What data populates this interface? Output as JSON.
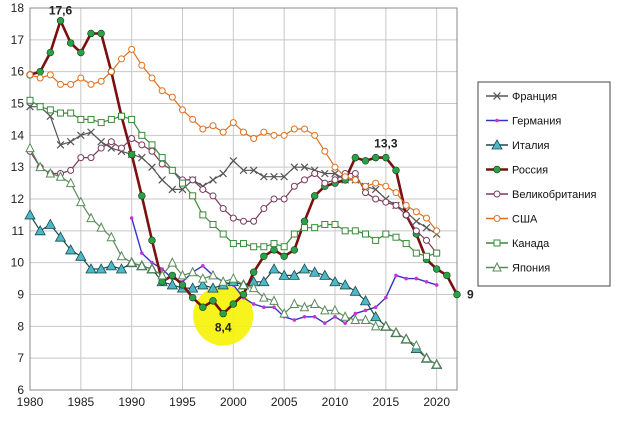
{
  "chart_data": {
    "type": "line",
    "xlim": [
      1980,
      2022
    ],
    "ylim": [
      6,
      18
    ],
    "x_ticks": [
      1980,
      1985,
      1990,
      1995,
      2000,
      2005,
      2010,
      2015,
      2020
    ],
    "y_ticks": [
      6,
      7,
      8,
      9,
      10,
      11,
      12,
      13,
      14,
      15,
      16,
      17,
      18
    ],
    "grid": true,
    "legend_position": "right",
    "annotations": [
      {
        "text": "17,6",
        "x": 1983,
        "y": 17.6
      },
      {
        "text": "13,3",
        "x": 2015,
        "y": 13.3
      },
      {
        "text": "8,4",
        "x": 1999,
        "y": 8.4,
        "highlight": "#f5f20a"
      },
      {
        "text": "9",
        "x": 2022,
        "y": 9.0
      }
    ],
    "series": [
      {
        "name": "Франция",
        "color": "#555555",
        "marker": "x",
        "x": [
          1980,
          1981,
          1982,
          1983,
          1984,
          1985,
          1986,
          1987,
          1988,
          1989,
          1990,
          1991,
          1992,
          1993,
          1994,
          1995,
          1996,
          1997,
          1998,
          1999,
          2000,
          2001,
          2002,
          2003,
          2004,
          2005,
          2006,
          2007,
          2008,
          2009,
          2010,
          2011,
          2012,
          2013,
          2014,
          2015,
          2016,
          2017,
          2018,
          2019,
          2020
        ],
        "y": [
          14.9,
          14.9,
          14.6,
          13.7,
          13.8,
          14.0,
          14.1,
          13.8,
          13.6,
          13.5,
          13.4,
          13.3,
          13.0,
          12.6,
          12.3,
          12.3,
          12.6,
          12.4,
          12.6,
          12.8,
          13.2,
          12.9,
          12.9,
          12.7,
          12.7,
          12.7,
          13.0,
          13.0,
          12.9,
          12.8,
          12.8,
          12.6,
          12.6,
          12.4,
          12.3,
          12.0,
          11.8,
          11.6,
          11.3,
          11.1,
          10.9
        ]
      },
      {
        "name": "Германия",
        "color": "#3333cc",
        "marker": "dot",
        "x": [
          1990,
          1991,
          1992,
          1993,
          1994,
          1995,
          1996,
          1997,
          1998,
          1999,
          2000,
          2001,
          2002,
          2003,
          2004,
          2005,
          2006,
          2007,
          2008,
          2009,
          2010,
          2011,
          2012,
          2013,
          2014,
          2015,
          2016,
          2017,
          2018,
          2019,
          2020
        ],
        "y": [
          11.4,
          10.3,
          10.0,
          9.8,
          9.5,
          9.4,
          9.7,
          9.9,
          9.6,
          9.4,
          9.3,
          8.9,
          8.7,
          8.6,
          8.6,
          8.3,
          8.2,
          8.3,
          8.3,
          8.1,
          8.3,
          8.1,
          8.4,
          8.5,
          8.6,
          8.9,
          9.6,
          9.5,
          9.5,
          9.4,
          9.3
        ]
      },
      {
        "name": "Италия",
        "color": "#1a4a4a",
        "marker": "triangle-filled",
        "x": [
          1980,
          1981,
          1982,
          1983,
          1984,
          1985,
          1986,
          1987,
          1988,
          1989,
          1990,
          1991,
          1992,
          1993,
          1994,
          1995,
          1996,
          1997,
          1998,
          1999,
          2000,
          2001,
          2002,
          2003,
          2004,
          2005,
          2006,
          2007,
          2008,
          2009,
          2010,
          2011,
          2012,
          2013,
          2014,
          2015,
          2016,
          2017,
          2018,
          2019,
          2020
        ],
        "y": [
          11.5,
          11.0,
          11.2,
          10.8,
          10.4,
          10.2,
          9.8,
          9.8,
          9.9,
          9.8,
          10.0,
          9.9,
          9.8,
          9.4,
          9.3,
          9.2,
          9.2,
          9.3,
          9.2,
          9.3,
          9.4,
          9.3,
          9.4,
          9.4,
          9.8,
          9.6,
          9.6,
          9.8,
          9.7,
          9.6,
          9.4,
          9.3,
          9.1,
          8.8,
          8.3,
          8.0,
          7.8,
          7.6,
          7.3,
          7.0,
          6.8
        ]
      },
      {
        "name": "Россия",
        "color": "#7a1010",
        "marker": "dot-green",
        "x": [
          1980,
          1981,
          1982,
          1983,
          1984,
          1985,
          1986,
          1987,
          1988,
          1989,
          1990,
          1991,
          1992,
          1993,
          1994,
          1995,
          1996,
          1997,
          1998,
          1999,
          2000,
          2001,
          2002,
          2003,
          2004,
          2005,
          2006,
          2007,
          2008,
          2009,
          2010,
          2011,
          2012,
          2013,
          2014,
          2015,
          2016,
          2017,
          2018,
          2019,
          2020,
          2021,
          2022
        ],
        "y": [
          15.9,
          16.0,
          16.6,
          17.6,
          16.9,
          16.6,
          17.2,
          17.2,
          16.0,
          14.6,
          13.4,
          12.1,
          10.7,
          9.4,
          9.6,
          9.3,
          8.9,
          8.6,
          8.8,
          8.4,
          8.7,
          9.0,
          9.7,
          10.2,
          10.4,
          10.2,
          10.4,
          11.3,
          12.1,
          12.4,
          12.5,
          12.6,
          13.3,
          13.2,
          13.3,
          13.3,
          12.9,
          11.5,
          10.9,
          10.1,
          9.8,
          9.6,
          9.0
        ]
      },
      {
        "name": "Великобритания",
        "color": "#7a3a5a",
        "marker": "circle-open",
        "x": [
          1980,
          1981,
          1982,
          1983,
          1984,
          1985,
          1986,
          1987,
          1988,
          1989,
          1990,
          1991,
          1992,
          1993,
          1994,
          1995,
          1996,
          1997,
          1998,
          1999,
          2000,
          2001,
          2002,
          2003,
          2004,
          2005,
          2006,
          2007,
          2008,
          2009,
          2010,
          2011,
          2012,
          2013,
          2014,
          2015,
          2016,
          2017,
          2018,
          2019,
          2020
        ],
        "y": [
          13.5,
          13.0,
          12.8,
          12.8,
          12.9,
          13.3,
          13.3,
          13.6,
          13.8,
          13.6,
          13.9,
          13.7,
          13.5,
          13.1,
          12.9,
          12.6,
          12.6,
          12.3,
          12.1,
          11.7,
          11.4,
          11.3,
          11.3,
          11.7,
          12.0,
          12.0,
          12.4,
          12.6,
          12.8,
          12.5,
          12.6,
          12.8,
          12.8,
          12.2,
          12.0,
          11.9,
          11.8,
          11.5,
          11.0,
          10.7,
          10.3
        ]
      },
      {
        "name": "США",
        "color": "#e07020",
        "marker": "circle-open",
        "x": [
          1980,
          1981,
          1982,
          1983,
          1984,
          1985,
          1986,
          1987,
          1988,
          1989,
          1990,
          1991,
          1992,
          1993,
          1994,
          1995,
          1996,
          1997,
          1998,
          1999,
          2000,
          2001,
          2002,
          2003,
          2004,
          2005,
          2006,
          2007,
          2008,
          2009,
          2010,
          2011,
          2012,
          2013,
          2014,
          2015,
          2016,
          2017,
          2018,
          2019,
          2020
        ],
        "y": [
          15.9,
          15.8,
          15.9,
          15.6,
          15.6,
          15.8,
          15.6,
          15.7,
          16.0,
          16.4,
          16.7,
          16.2,
          15.8,
          15.4,
          15.2,
          14.8,
          14.5,
          14.2,
          14.3,
          14.1,
          14.4,
          14.1,
          13.9,
          14.1,
          14.0,
          14.0,
          14.2,
          14.2,
          14.0,
          13.5,
          13.0,
          12.7,
          12.6,
          12.4,
          12.5,
          12.4,
          12.2,
          11.8,
          11.6,
          11.4,
          11.0
        ]
      },
      {
        "name": "Канада",
        "color": "#3a8a3a",
        "marker": "square-open",
        "x": [
          1980,
          1981,
          1982,
          1983,
          1984,
          1985,
          1986,
          1987,
          1988,
          1989,
          1990,
          1991,
          1992,
          1993,
          1994,
          1995,
          1996,
          1997,
          1998,
          1999,
          2000,
          2001,
          2002,
          2003,
          2004,
          2005,
          2006,
          2007,
          2008,
          2009,
          2010,
          2011,
          2012,
          2013,
          2014,
          2015,
          2016,
          2017,
          2018,
          2019,
          2020
        ],
        "y": [
          15.1,
          14.9,
          14.8,
          14.7,
          14.7,
          14.5,
          14.5,
          14.4,
          14.5,
          14.6,
          14.5,
          14.0,
          13.7,
          13.3,
          12.9,
          12.5,
          12.1,
          11.5,
          11.2,
          10.9,
          10.6,
          10.6,
          10.5,
          10.5,
          10.6,
          10.5,
          10.9,
          11.1,
          11.1,
          11.2,
          11.2,
          11.0,
          11.0,
          10.9,
          10.7,
          10.9,
          10.8,
          10.6,
          10.3,
          10.2,
          10.3
        ]
      },
      {
        "name": "Япония",
        "color": "#5a8a5a",
        "marker": "triangle-open",
        "x": [
          1980,
          1981,
          1982,
          1983,
          1984,
          1985,
          1986,
          1987,
          1988,
          1989,
          1990,
          1991,
          1992,
          1993,
          1994,
          1995,
          1996,
          1997,
          1998,
          1999,
          2000,
          2001,
          2002,
          2003,
          2004,
          2005,
          2006,
          2007,
          2008,
          2009,
          2010,
          2011,
          2012,
          2013,
          2014,
          2015,
          2016,
          2017,
          2018,
          2019,
          2020
        ],
        "y": [
          13.6,
          13.0,
          12.8,
          12.7,
          12.5,
          11.9,
          11.4,
          11.1,
          10.8,
          10.2,
          10.0,
          9.9,
          9.8,
          9.6,
          10.0,
          9.6,
          9.7,
          9.5,
          9.6,
          9.4,
          9.5,
          9.3,
          9.2,
          8.9,
          8.8,
          8.4,
          8.7,
          8.6,
          8.7,
          8.5,
          8.5,
          8.3,
          8.2,
          8.2,
          8.0,
          8.0,
          7.8,
          7.6,
          7.4,
          7.0,
          6.8
        ]
      }
    ]
  }
}
